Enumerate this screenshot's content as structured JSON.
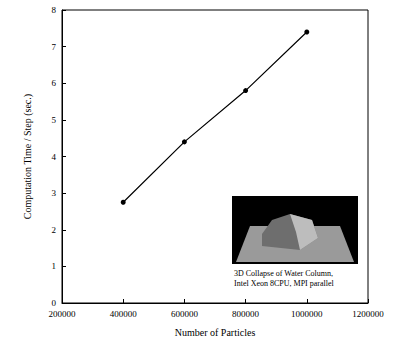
{
  "chart_data": {
    "type": "line",
    "xlabel": "Number of Particles",
    "ylabel": "Computation Time / Step (sec.)",
    "annotation": [
      "3D Collapse of Water Column,",
      "Intel Xeon 8CPU, MPI parallel"
    ],
    "x": [
      400000,
      600000,
      800000,
      1000000
    ],
    "series": [
      {
        "values": [
          2.75,
          4.4,
          5.8,
          7.4
        ],
        "color": "#000000",
        "marker": "circle",
        "line_style": "solid"
      }
    ],
    "xlim": [
      200000,
      1200000
    ],
    "xticks": [
      200000,
      400000,
      600000,
      800000,
      1000000,
      1200000
    ],
    "ylim": [
      0,
      8
    ],
    "yticks": [
      0,
      1,
      2,
      3,
      4,
      5,
      6,
      7,
      8
    ],
    "grid": false
  }
}
